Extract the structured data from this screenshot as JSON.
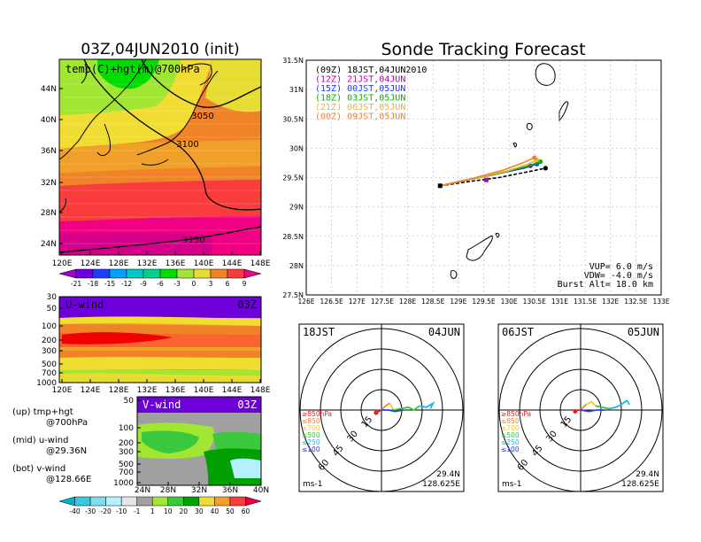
{
  "left": {
    "title": "03Z,04JUN2010 (init)",
    "map_label": "temp(C)+hgt(m)@700hPa",
    "lat_ticks": [
      "44N",
      "40N",
      "36N",
      "32N",
      "28N",
      "24N"
    ],
    "lon_ticks": [
      "120E",
      "124E",
      "128E",
      "132E",
      "136E",
      "140E",
      "144E",
      "148E"
    ],
    "contour_labels": [
      "3050",
      "3100",
      "3150"
    ],
    "temp_colorbar": [
      "-21",
      "-18",
      "-15",
      "-12",
      "-9",
      "-6",
      "-3",
      "0",
      "3",
      "6",
      "9"
    ],
    "temp_colors": [
      "#a000c8",
      "#6e00dc",
      "#1e3cff",
      "#00a0ff",
      "#00c8c8",
      "#00d28c",
      "#00dc00",
      "#a0e632",
      "#e6dc32",
      "#f08228",
      "#fa3c3c",
      "#f00082"
    ],
    "u_panel": {
      "label": "U-wind",
      "time": "03Z",
      "p_ticks": [
        "30",
        "50",
        "100",
        "200",
        "300",
        "500",
        "700",
        "1000"
      ],
      "lon_ticks": [
        "120E",
        "124E",
        "128E",
        "132E",
        "136E",
        "140E",
        "144E",
        "148E"
      ]
    },
    "v_panel": {
      "label": "V-wind",
      "time": "03Z",
      "p_ticks": [
        "50",
        "100",
        "200",
        "300",
        "500",
        "700",
        "1000"
      ],
      "lat_ticks": [
        "24N",
        "28N",
        "32N",
        "36N",
        "40N"
      ]
    },
    "legend_notes": [
      {
        "a": "(up) tmp+hgt",
        "b": "@700hPa"
      },
      {
        "a": "(mid) u-wind",
        "b": "@29.36N"
      },
      {
        "a": "(bot) v-wind",
        "b": "@128.66E"
      }
    ],
    "wind_colorbar": [
      "-40",
      "-30",
      "-20",
      "-10",
      "-1",
      "1",
      "10",
      "20",
      "30",
      "40",
      "50",
      "60"
    ],
    "wind_colors": [
      "#00b4c8",
      "#3cc8dc",
      "#82dcf0",
      "#b4f0ff",
      "#e6e6e6",
      "#a0a0a0",
      "#a0e632",
      "#3cc83c",
      "#00a000",
      "#f0dc32",
      "#f0a028",
      "#fa3c3c",
      "#e6003c"
    ]
  },
  "chart_data": [
    {
      "type": "line",
      "title": "Sonde Tracking Forecast",
      "x_ticks": [
        "126E",
        "126.5E",
        "127E",
        "127.5E",
        "128E",
        "128.5E",
        "129E",
        "129.5E",
        "130E",
        "130.5E",
        "131E",
        "131.5E",
        "132E",
        "132.5E",
        "133E"
      ],
      "y_ticks": [
        "31.5N",
        "31N",
        "30.5N",
        "30N",
        "29.5N",
        "29N",
        "28.5N",
        "28N",
        "27.5N"
      ],
      "xlim": [
        126,
        133
      ],
      "ylim": [
        27.5,
        31.5
      ],
      "grid": true,
      "legend_position": "top-left",
      "series": [
        {
          "name": "(09Z) 18JST,04JUN2010",
          "color": "#000000",
          "dashed": true,
          "x": [
            128.64,
            129.2,
            129.8,
            130.2,
            130.5,
            130.72
          ],
          "y": [
            29.36,
            29.43,
            29.5,
            29.57,
            29.62,
            29.66
          ]
        },
        {
          "name": "(12Z) 21JST,04JUN",
          "color": "#b400b4",
          "dashed": false,
          "x": [
            128.64,
            129.1,
            129.7,
            130.15,
            130.42
          ],
          "y": [
            29.36,
            29.45,
            29.55,
            29.64,
            29.7
          ]
        },
        {
          "name": "(15Z) 00JST,05JUN",
          "color": "#1e3cff",
          "dashed": false,
          "x": [
            128.64,
            129.2,
            129.8,
            130.3,
            130.55
          ],
          "y": [
            29.36,
            29.46,
            29.57,
            29.66,
            29.73
          ]
        },
        {
          "name": "(18Z) 03JST,05JUN",
          "color": "#00b400",
          "dashed": false,
          "x": [
            128.64,
            129.25,
            129.9,
            130.35,
            130.62
          ],
          "y": [
            29.36,
            29.47,
            29.59,
            29.69,
            29.77
          ]
        },
        {
          "name": "(21Z) 06JST,05JUN",
          "color": "#f0b428",
          "dashed": false,
          "x": [
            128.64,
            129.3,
            129.95,
            130.35,
            130.55
          ],
          "y": [
            29.36,
            29.48,
            29.61,
            29.72,
            29.8
          ]
        },
        {
          "name": "(00Z) 09JST,05JUN",
          "color": "#f08232",
          "dashed": false,
          "x": [
            128.64,
            129.3,
            129.9,
            130.3,
            130.5
          ],
          "y": [
            29.36,
            29.49,
            29.63,
            29.76,
            29.84
          ]
        }
      ],
      "annotations": [
        "VUP= 6.0 m/s",
        "VDW= -4.0 m/s",
        "Burst Alt= 18.0 km"
      ]
    },
    {
      "type": "line",
      "time_label": "18JST",
      "date_label": "04JUN",
      "ring_labels": [
        "15",
        "30",
        "45",
        "60"
      ],
      "level_legend": [
        "≥850hPa",
        "≤850",
        "≤700",
        "≤500",
        "≤250",
        "≤100"
      ],
      "level_colors": [
        "#e61e1e",
        "#f08232",
        "#f0c828",
        "#32c832",
        "#1eb4e6",
        "#1e3cff"
      ],
      "unit": "ms-1",
      "position": [
        "29.4N",
        "128.625E"
      ],
      "segments": [
        {
          "level": "≥850hPa",
          "points": [
            [
              -4,
              -2
            ],
            [
              -2,
              -1
            ],
            [
              0,
              0
            ]
          ]
        },
        {
          "level": "≤850",
          "points": [
            [
              0,
              0
            ],
            [
              3,
              3
            ],
            [
              6,
              5
            ]
          ]
        },
        {
          "level": "≤700",
          "points": [
            [
              6,
              5
            ],
            [
              9,
              0
            ]
          ]
        },
        {
          "level": "≤500",
          "points": [
            [
              9,
              0
            ],
            [
              14,
              1
            ],
            [
              20,
              2
            ],
            [
              24,
              0
            ],
            [
              28,
              3
            ]
          ]
        },
        {
          "level": "≤250",
          "points": [
            [
              28,
              3
            ],
            [
              33,
              2
            ],
            [
              38,
              5
            ],
            [
              36,
              1
            ]
          ]
        },
        {
          "level": "≤100",
          "points": [
            [
              0,
              0
            ],
            [
              5,
              0
            ],
            [
              10,
              -1
            ],
            [
              16,
              0
            ]
          ]
        }
      ]
    },
    {
      "type": "line",
      "time_label": "06JST",
      "date_label": "05JUN",
      "ring_labels": [
        "15",
        "30",
        "45",
        "60"
      ],
      "level_legend": [
        "≥850hPa",
        "≤850",
        "≤700",
        "≤500",
        "≤250",
        "≤100"
      ],
      "level_colors": [
        "#e61e1e",
        "#f08232",
        "#f0c828",
        "#32c832",
        "#1eb4e6",
        "#1e3cff"
      ],
      "unit": "ms-1",
      "position": [
        "29.4N",
        "128.625E"
      ],
      "segments": [
        {
          "level": "≥850hPa",
          "points": [
            [
              -4,
              -1
            ],
            [
              -2,
              0
            ],
            [
              0,
              0
            ]
          ]
        },
        {
          "level": "≤850",
          "points": [
            [
              0,
              0
            ],
            [
              2,
              2
            ],
            [
              4,
              4
            ]
          ]
        },
        {
          "level": "≤700",
          "points": [
            [
              4,
              4
            ],
            [
              8,
              6
            ],
            [
              11,
              3
            ]
          ]
        },
        {
          "level": "≤500",
          "points": [
            [
              11,
              3
            ],
            [
              16,
              2
            ],
            [
              21,
              1
            ]
          ]
        },
        {
          "level": "≤250",
          "points": [
            [
              21,
              1
            ],
            [
              26,
              2
            ],
            [
              30,
              4
            ],
            [
              34,
              7
            ],
            [
              36,
              4
            ]
          ]
        },
        {
          "level": "≤100",
          "points": [
            [
              0,
              0
            ],
            [
              6,
              -1
            ],
            [
              12,
              0
            ],
            [
              18,
              0
            ]
          ]
        }
      ]
    }
  ]
}
